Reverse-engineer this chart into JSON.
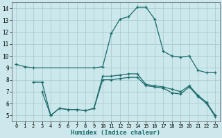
{
  "xlabel": "Humidex (Indice chaleur)",
  "x_ticks": [
    0,
    1,
    2,
    3,
    4,
    5,
    6,
    7,
    8,
    9,
    10,
    11,
    12,
    13,
    14,
    15,
    16,
    17,
    18,
    19,
    20,
    21,
    22,
    23
  ],
  "xlim": [
    -0.5,
    23.5
  ],
  "ylim": [
    4.5,
    14.5
  ],
  "y_ticks": [
    5,
    6,
    7,
    8,
    9,
    10,
    11,
    12,
    13,
    14
  ],
  "bg_color": "#cce8ec",
  "grid_color": "#aacccc",
  "line_color": "#1a6b6b",
  "line1_x": [
    0,
    1,
    2,
    9,
    10,
    11,
    12,
    13,
    14,
    15,
    16,
    17,
    18,
    19,
    20,
    21,
    22,
    23
  ],
  "line1_y": [
    9.3,
    9.1,
    9.0,
    9.0,
    9.1,
    11.9,
    13.1,
    13.3,
    14.1,
    14.1,
    13.1,
    10.4,
    10.0,
    9.9,
    10.0,
    8.8,
    8.6,
    8.6
  ],
  "line2_x": [
    2,
    3,
    4,
    5,
    6,
    7,
    8,
    9,
    10,
    11,
    12,
    13,
    14,
    15,
    16,
    17,
    18,
    19,
    20,
    21,
    22,
    23
  ],
  "line2_y": [
    7.8,
    7.8,
    5.0,
    5.6,
    5.5,
    5.5,
    5.4,
    5.6,
    8.3,
    8.3,
    8.4,
    8.5,
    8.5,
    7.6,
    7.5,
    7.4,
    7.2,
    7.0,
    7.5,
    6.7,
    6.1,
    5.0
  ],
  "line3_x": [
    3,
    4,
    5,
    6,
    7,
    8,
    9,
    10,
    11,
    12,
    13,
    14,
    15,
    16,
    17,
    18,
    19,
    20,
    21,
    22,
    23
  ],
  "line3_y": [
    7.0,
    5.0,
    5.6,
    5.5,
    5.5,
    5.4,
    5.6,
    8.0,
    8.0,
    8.1,
    8.2,
    8.2,
    7.5,
    7.4,
    7.3,
    6.9,
    6.8,
    7.4,
    6.6,
    6.0,
    4.9
  ]
}
